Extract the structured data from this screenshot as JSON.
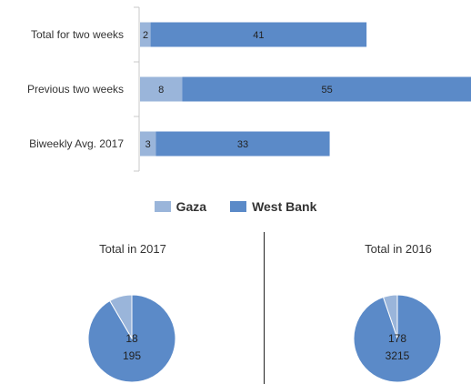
{
  "chart_data": [
    {
      "type": "bar",
      "orientation": "horizontal",
      "stacked": true,
      "categories": [
        "Total for two weeks",
        "Previous two weeks",
        "Biweekly Avg. 2017"
      ],
      "series": [
        {
          "name": "Gaza",
          "values": [
            2,
            8,
            3
          ],
          "color": "#9ab5da"
        },
        {
          "name": "West Bank",
          "values": [
            41,
            55,
            33
          ],
          "color": "#5b8ac8"
        }
      ],
      "xlim": [
        0,
        63
      ],
      "grid": false,
      "legend": "bottom"
    },
    {
      "type": "pie",
      "title": "Total in 2017",
      "labels": [
        "Gaza",
        "West Bank"
      ],
      "values": [
        18,
        195
      ],
      "colors": [
        "#9ab5da",
        "#5b8ac8"
      ]
    },
    {
      "type": "pie",
      "title": "Total in 2016",
      "labels": [
        "Gaza",
        "West Bank"
      ],
      "values": [
        178,
        3215
      ],
      "colors": [
        "#9ab5da",
        "#5b8ac8"
      ]
    }
  ],
  "legend": {
    "items": [
      {
        "label": "Gaza",
        "color": "#9ab5da"
      },
      {
        "label": "West Bank",
        "color": "#5b8ac8"
      }
    ]
  }
}
